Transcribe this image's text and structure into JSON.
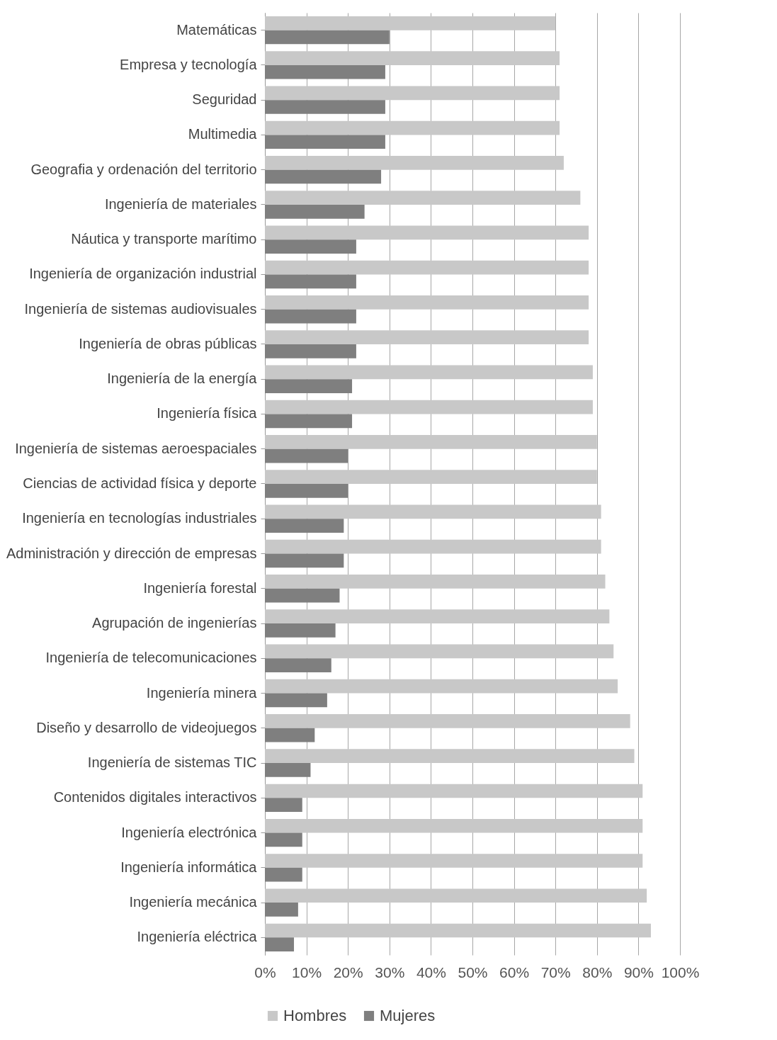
{
  "chart_data": {
    "type": "bar",
    "orientation": "horizontal",
    "categories": [
      "Matemáticas",
      "Empresa y tecnología",
      "Seguridad",
      "Multimedia",
      "Geografia y ordenación del territorio",
      "Ingeniería de materiales",
      "Náutica y transporte marítimo",
      "Ingeniería de organización industrial",
      "Ingeniería de sistemas audiovisuales",
      "Ingeniería de obras públicas",
      "Ingeniería de la energía",
      "Ingeniería física",
      "Ingeniería de sistemas aeroespaciales",
      "Ciencias de actividad física y deporte",
      "Ingeniería en tecnologías industriales",
      "Administración y dirección de empresas",
      "Ingeniería forestal",
      "Agrupación de ingenierías",
      "Ingeniería de telecomunicaciones",
      "Ingeniería minera",
      "Diseño y desarrollo de videojuegos",
      "Ingeniería de sistemas TIC",
      "Contenidos digitales interactivos",
      "Ingeniería electrónica",
      "Ingeniería informática",
      "Ingeniería mecánica",
      "Ingeniería eléctrica"
    ],
    "series": [
      {
        "name": "Hombres",
        "color": "#c8c8c8",
        "values": [
          70,
          71,
          71,
          71,
          72,
          76,
          78,
          78,
          78,
          78,
          79,
          79,
          80,
          80,
          81,
          81,
          82,
          83,
          84,
          85,
          88,
          89,
          91,
          91,
          91,
          92,
          93
        ]
      },
      {
        "name": "Mujeres",
        "color": "#7f7f7f",
        "values": [
          30,
          29,
          29,
          29,
          28,
          24,
          22,
          22,
          22,
          22,
          21,
          21,
          20,
          20,
          19,
          19,
          18,
          17,
          16,
          15,
          12,
          11,
          9,
          9,
          9,
          8,
          7
        ]
      }
    ],
    "xlim": [
      0,
      100
    ],
    "xticks": [
      {
        "value": 0,
        "label": "0%"
      },
      {
        "value": 10,
        "label": "10%"
      },
      {
        "value": 20,
        "label": "20%"
      },
      {
        "value": 30,
        "label": "30%"
      },
      {
        "value": 40,
        "label": "40%"
      },
      {
        "value": 50,
        "label": "50%"
      },
      {
        "value": 60,
        "label": "60%"
      },
      {
        "value": 70,
        "label": "70%"
      },
      {
        "value": 80,
        "label": "80%"
      },
      {
        "value": 90,
        "label": "90%"
      },
      {
        "value": 100,
        "label": "100%"
      }
    ],
    "grid": "x",
    "legend": "bottom"
  }
}
